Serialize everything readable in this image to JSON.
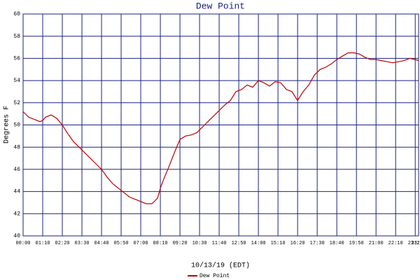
{
  "chart_data": {
    "type": "line",
    "title": "Dew Point",
    "xlabel": "10/13/19 (EDT)",
    "ylabel": "Degrees F",
    "x": [
      "00:00",
      "00:20",
      "00:40",
      "01:00",
      "01:10",
      "01:20",
      "01:40",
      "02:00",
      "02:20",
      "02:40",
      "03:00",
      "03:20",
      "03:40",
      "04:00",
      "04:20",
      "04:40",
      "05:00",
      "05:20",
      "05:40",
      "06:00",
      "06:20",
      "06:40",
      "07:00",
      "07:20",
      "07:40",
      "08:00",
      "08:10",
      "08:20",
      "08:40",
      "09:00",
      "09:20",
      "09:40",
      "10:00",
      "10:20",
      "10:40",
      "11:00",
      "11:20",
      "11:40",
      "12:00",
      "12:20",
      "12:40",
      "13:00",
      "13:20",
      "13:40",
      "14:00",
      "14:20",
      "14:40",
      "15:00",
      "15:20",
      "15:40",
      "16:00",
      "16:20",
      "16:40",
      "17:00",
      "17:20",
      "17:40",
      "18:00",
      "18:20",
      "18:40",
      "19:00",
      "19:20",
      "19:40",
      "20:00",
      "20:20",
      "20:40",
      "21:00",
      "21:20",
      "21:40",
      "22:00",
      "22:20",
      "22:40",
      "23:00",
      "23:20",
      "23:32"
    ],
    "series": [
      {
        "name": "Dew Point",
        "color": "#c00000",
        "values": [
          51.2,
          50.7,
          50.5,
          50.3,
          50.4,
          50.7,
          50.9,
          50.6,
          50.0,
          49.2,
          48.5,
          48.0,
          47.5,
          47.0,
          46.5,
          46.0,
          45.3,
          44.7,
          44.3,
          43.9,
          43.5,
          43.3,
          43.1,
          42.9,
          42.9,
          43.4,
          44.3,
          45.0,
          46.2,
          47.5,
          48.7,
          49.0,
          49.1,
          49.3,
          49.8,
          50.3,
          50.8,
          51.3,
          51.8,
          52.2,
          53.0,
          53.2,
          53.6,
          53.4,
          54.0,
          53.8,
          53.5,
          53.9,
          53.8,
          53.2,
          53.0,
          52.2,
          53.0,
          53.6,
          54.5,
          55.0,
          55.2,
          55.5,
          55.9,
          56.2,
          56.5,
          56.5,
          56.4,
          56.1,
          55.9,
          55.9,
          55.8,
          55.7,
          55.6,
          55.7,
          55.8,
          56.0,
          55.9,
          55.8
        ]
      }
    ],
    "xlim": [
      "00:00",
      "23:32"
    ],
    "xticks": [
      "00:00",
      "01:10",
      "02:20",
      "03:30",
      "04:40",
      "05:50",
      "07:00",
      "08:10",
      "09:20",
      "10:30",
      "11:40",
      "12:50",
      "14:00",
      "15:10",
      "16:20",
      "17:30",
      "18:40",
      "19:50",
      "21:00",
      "22:10",
      "23:20",
      "23:32"
    ],
    "ylim": [
      40,
      60
    ],
    "yticks": [
      40,
      42,
      44,
      46,
      48,
      50,
      52,
      54,
      56,
      58,
      60
    ],
    "grid": true
  }
}
